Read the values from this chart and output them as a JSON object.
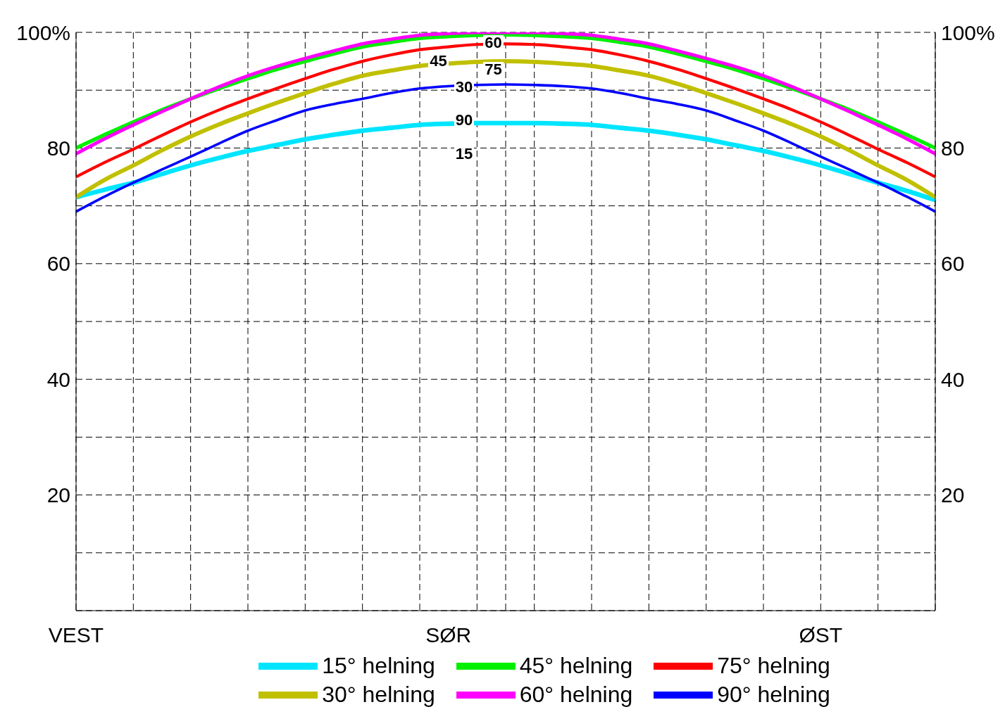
{
  "chart_data": {
    "type": "line",
    "categories": [
      "VEST",
      null,
      null,
      null,
      null,
      null,
      null,
      null,
      null,
      null,
      null,
      null,
      null,
      "SØR",
      null,
      null,
      null,
      null,
      null,
      null,
      null,
      null,
      null,
      null,
      null,
      null,
      "ØST",
      null,
      null,
      null,
      null
    ],
    "series": [
      {
        "name": "15° helning",
        "color": "#00e5ff",
        "values": [
          71.5,
          72.8,
          74,
          75.5,
          77,
          78.3,
          79.5,
          80.5,
          81.5,
          82.3,
          83,
          83.5,
          84,
          84.2,
          84.3,
          84.3,
          84.3,
          84.2,
          84,
          83.5,
          83,
          82.3,
          81.5,
          80.5,
          79.5,
          78.3,
          77,
          75.5,
          74,
          72.6,
          71
        ]
      },
      {
        "name": "30° helning",
        "color": "#c0c000",
        "values": [
          71.5,
          74.5,
          77,
          79.6,
          82,
          84.1,
          86,
          87.8,
          89.5,
          91.1,
          92.5,
          93.4,
          94.2,
          94.6,
          94.9,
          95,
          94.9,
          94.6,
          94.2,
          93.4,
          92.5,
          91.1,
          89.5,
          87.8,
          86,
          84.1,
          82,
          79.6,
          77,
          74.5,
          71.5
        ]
      },
      {
        "name": "45° helning",
        "color": "#00f000",
        "values": [
          80,
          82.3,
          84.5,
          86.6,
          88.5,
          90.3,
          92,
          93.6,
          95,
          96.3,
          97.5,
          98.3,
          99,
          99.3,
          99.5,
          99.6,
          99.5,
          99.3,
          99,
          98.3,
          97.5,
          96.3,
          95,
          93.6,
          92,
          90.3,
          88.5,
          86.6,
          84.5,
          82.3,
          80
        ]
      },
      {
        "name": "60° helning",
        "color": "#ff00ff",
        "values": [
          79,
          81.6,
          84,
          86.3,
          88.5,
          90.6,
          92.5,
          94.1,
          95.5,
          96.8,
          98,
          98.8,
          99.5,
          99.8,
          100,
          100,
          100,
          99.8,
          99.5,
          98.8,
          98,
          96.8,
          95.5,
          94.1,
          92.5,
          90.6,
          88.5,
          86.3,
          84,
          81.6,
          79
        ]
      },
      {
        "name": "75° helning",
        "color": "#ff0000",
        "values": [
          75,
          77.5,
          79.8,
          82.2,
          84.5,
          86.6,
          88.5,
          90.3,
          92,
          93.6,
          95,
          96.1,
          97,
          97.5,
          97.9,
          98,
          97.9,
          97.5,
          97,
          96.1,
          95,
          93.6,
          92,
          90.3,
          88.5,
          86.6,
          84.5,
          82.2,
          79.8,
          77.5,
          75
        ]
      },
      {
        "name": "90° helning",
        "color": "#0000ff",
        "values": [
          69,
          71.6,
          74,
          76.3,
          78.5,
          80.8,
          83,
          84.8,
          86.5,
          87.6,
          88.5,
          89.5,
          90.3,
          90.7,
          90.9,
          91,
          90.9,
          90.7,
          90.3,
          89.5,
          88.5,
          87.6,
          86.5,
          84.8,
          83,
          80.8,
          78.5,
          76.3,
          74,
          71.6,
          69
        ]
      }
    ],
    "ylim": [
      0,
      100
    ],
    "yticks": [
      {
        "value": 0,
        "label": null
      },
      {
        "value": 10,
        "label": null
      },
      20,
      {
        "value": 30,
        "label": null
      },
      40,
      {
        "value": 50,
        "label": null
      },
      60,
      {
        "value": 70,
        "label": null
      },
      80,
      {
        "value": 90,
        "label": null
      },
      {
        "value": 100,
        "label": "100%"
      }
    ],
    "y2lim": [
      0,
      100
    ],
    "y2ticks": [
      20,
      40,
      60,
      80,
      {
        "value": 100,
        "label": "100%"
      }
    ],
    "annotations": [
      "60",
      "45",
      "75",
      "30",
      "90",
      "15"
    ],
    "grid": true,
    "legend": "bottom",
    "marker": "none",
    "line_style": "solid"
  }
}
